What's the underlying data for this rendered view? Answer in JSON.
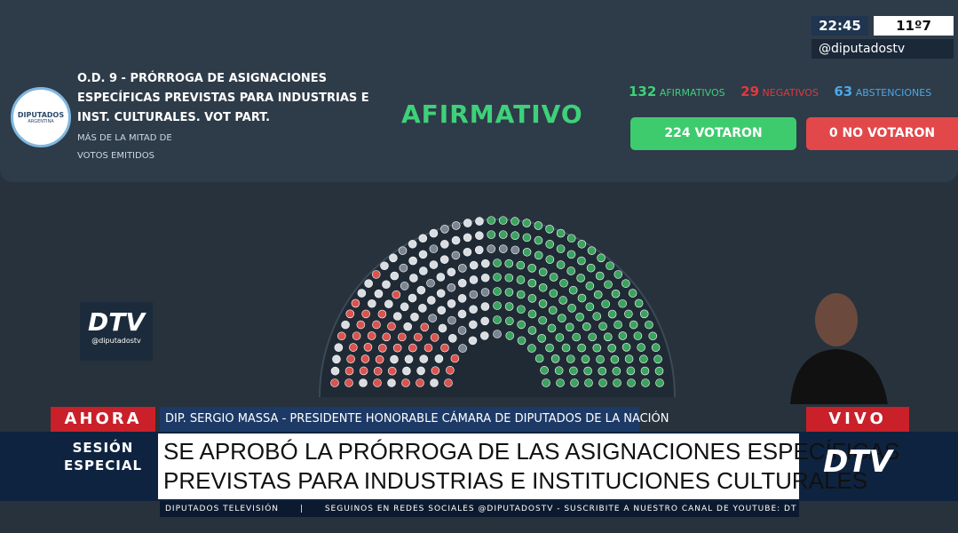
{
  "header": {
    "logo": [
      "DIPUTADOS",
      "ARGENTINA"
    ],
    "title": [
      "O.D. 9 - PRÓRROGA DE ASIGNACIONES",
      "ESPECÍFICAS PREVISTAS PARA INDUSTRIAS E",
      "INST. CULTURALES. VOT PART."
    ],
    "majority": [
      "MÁS DE LA MITAD DE",
      "VOTOS EMITIDOS"
    ],
    "result": "AFIRMATIVO",
    "tallies": [
      {
        "count": 132,
        "label": "AFIRMATIVOS"
      },
      {
        "count": 29,
        "label": "NEGATIVOS"
      },
      {
        "count": 63,
        "label": "ABSTENCIONES"
      }
    ],
    "voted": {
      "count": 224,
      "label": "VOTARON"
    },
    "not_voted": {
      "count": 0,
      "label": "NO VOTARON"
    }
  },
  "corner": {
    "time": "22:45",
    "temp": "11º7",
    "handle": "@diputadostv"
  },
  "bug": {
    "logo": "DTV",
    "handle": "@diputadostv"
  },
  "lower_third": {
    "now": "AHORA",
    "session": [
      "SESIÓN",
      "ESPECIAL"
    ],
    "speaker": "DIP. SERGIO MASSA - PRESIDENTE HONORABLE CÁMARA DE DIPUTADOS DE LA NACIÓN",
    "headline": [
      "SE APROBÓ LA PRÓRROGA DE LAS ASIGNACIONES ESPECÍFICAS",
      "PREVISTAS PARA INDUSTRIAS E INSTITUCIONES CULTURALES"
    ],
    "live": "VIVO",
    "logo": "DTV",
    "ticker": [
      "DIPUTADOS TELEVISIÓN",
      "SEGUINOS EN REDES SOCIALES @DIPUTADOSTV - SUSCRIBITE A NUESTRO CANAL DE YOUTUBE: DT"
    ]
  }
}
